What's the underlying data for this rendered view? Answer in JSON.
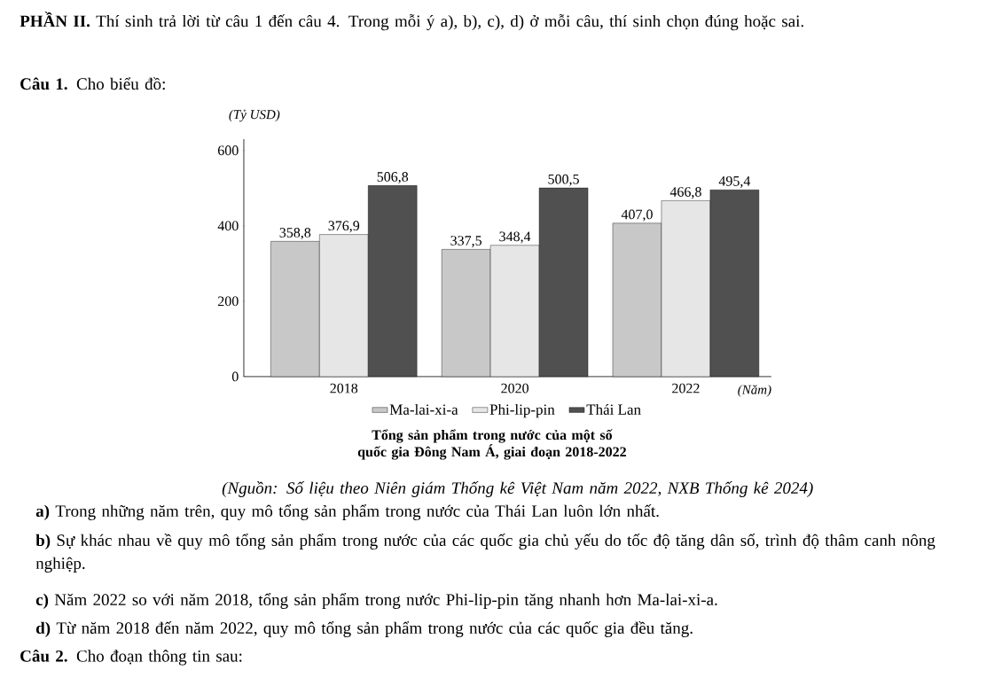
{
  "chart_data": {
    "type": "bar",
    "title": "Tổng sản phẩm trong nước của một số quốc gia Đông Nam Á, giai đoạn 2018-2022",
    "ylabel": "(Tỷ USD)",
    "xlabel": "(Năm)",
    "categories": [
      "2018",
      "2020",
      "2022"
    ],
    "series": [
      {
        "name": "Ma-lai-xi-a",
        "color": "#c8c8c8",
        "values": [
          358.8,
          337.5,
          407.0
        ],
        "value_labels": [
          "358,8",
          "337,5",
          "407,0"
        ]
      },
      {
        "name": "Phi-lip-pin",
        "color": "#e6e6e6",
        "values": [
          376.9,
          348.4,
          466.8
        ],
        "value_labels": [
          "376,9",
          "348,4",
          "466,8"
        ]
      },
      {
        "name": "Thái Lan",
        "color": "#505050",
        "values": [
          506.8,
          500.5,
          495.4
        ],
        "value_labels": [
          "506,8",
          "500,5",
          "495,4"
        ]
      }
    ],
    "ylim": [
      0,
      630
    ],
    "yticks": [
      0,
      200,
      400,
      600
    ],
    "legend": "bottom",
    "annotations": [
      "**PHẦN II.** Thí sinh trả lời từ câu 1 đến câu 4. Trong mỗi ý a), b), c), d) ở mỗi câu, thí sinh chọn đúng hoặc sai.",
      "**Câu 1.** Cho biểu đồ:",
      "(Nguồn: Số liệu theo Niên giám Thống kê Việt Nam năm 2022, NXB Thống kê 2024)",
      "**a)** Trong những năm trên, quy mô tổng sản phẩm trong nước của Thái Lan luôn lớn nhất.",
      "**b)** Sự khác nhau về quy mô tổng sản phẩm trong nước của các quốc gia chủ yếu do tốc độ tăng dân số, trình độ thâm canh nông nghiệp.",
      "**c)** Năm 2022 so với năm 2018, tổng sản phẩm trong nước Phi-lip-pin tăng nhanh hơn Ma-lai-xi-a.",
      "**d)** Từ năm 2018 đến năm 2022, quy mô tổng sản phẩm trong nước của các quốc gia đều tăng.",
      "**Câu 2.** Cho đoạn thông tin sau:"
    ]
  }
}
